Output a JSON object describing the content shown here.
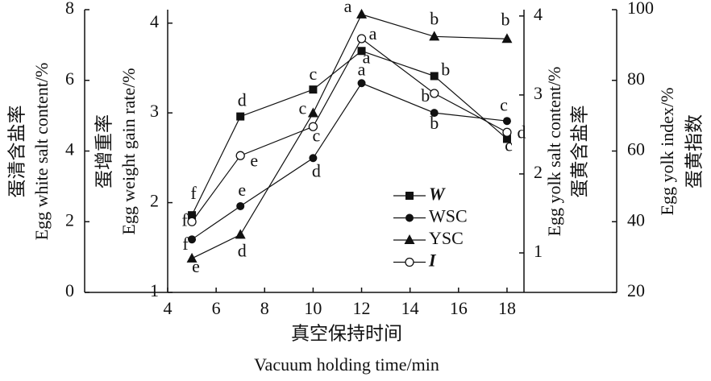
{
  "chart_data": {
    "type": "line",
    "x_label_cn": "真空保持时间",
    "x_label_en": "Vacuum holding time/min",
    "xlim": [
      4,
      18.7
    ],
    "xticks": [
      4,
      6,
      8,
      10,
      12,
      14,
      16,
      18
    ],
    "y_axes": [
      {
        "label_cn": "蛋清含盐率",
        "label_en": "Egg white salt content/%",
        "lim": [
          0,
          8
        ],
        "ticks": [
          0,
          2,
          4,
          6,
          8
        ]
      },
      {
        "label_cn": "蛋增重率",
        "label_en": "Egg weight gain rate/%",
        "lim": [
          1,
          4.15
        ],
        "ticks": [
          1,
          2,
          3,
          4
        ]
      },
      {
        "label_cn": "蛋黄含盐率",
        "label_en": "Egg yolk salt content/%",
        "lim": [
          0.5,
          4.08
        ],
        "ticks": [
          1,
          2,
          3,
          4
        ]
      },
      {
        "label_cn": "蛋黄指数",
        "label_en": "Egg yolk index/%",
        "lim": [
          20,
          100
        ],
        "ticks": [
          20,
          40,
          60,
          80,
          100
        ]
      }
    ],
    "x": [
      5,
      7,
      10,
      12,
      15,
      18
    ],
    "series": [
      {
        "name": "W",
        "axis": 1,
        "color": "#111",
        "marker": "square",
        "values": [
          1.86,
          2.96,
          3.26,
          3.69,
          3.41,
          2.71
        ],
        "letters": [
          "f",
          "d",
          "c",
          "a",
          "b",
          "c"
        ]
      },
      {
        "name": "WSC",
        "axis": 0,
        "color": "#111",
        "marker": "circle",
        "values": [
          1.5,
          2.44,
          3.8,
          5.92,
          5.08,
          4.85
        ],
        "letters": [
          "f",
          "e",
          "d",
          "a",
          "b",
          "c"
        ]
      },
      {
        "name": "YSC",
        "axis": 2,
        "color": "#111",
        "marker": "triangle",
        "values": [
          0.93,
          1.23,
          2.77,
          4.02,
          3.74,
          3.71
        ],
        "letters": [
          "e",
          "d",
          "c",
          "a",
          "b",
          "b"
        ]
      },
      {
        "name": "I",
        "axis": 3,
        "color": "#111",
        "marker": "open-circle",
        "values": [
          40.0,
          58.7,
          66.9,
          91.8,
          76.3,
          65.3
        ],
        "letters": [
          "f",
          "e",
          "c",
          "a",
          "b",
          "d"
        ]
      }
    ]
  }
}
